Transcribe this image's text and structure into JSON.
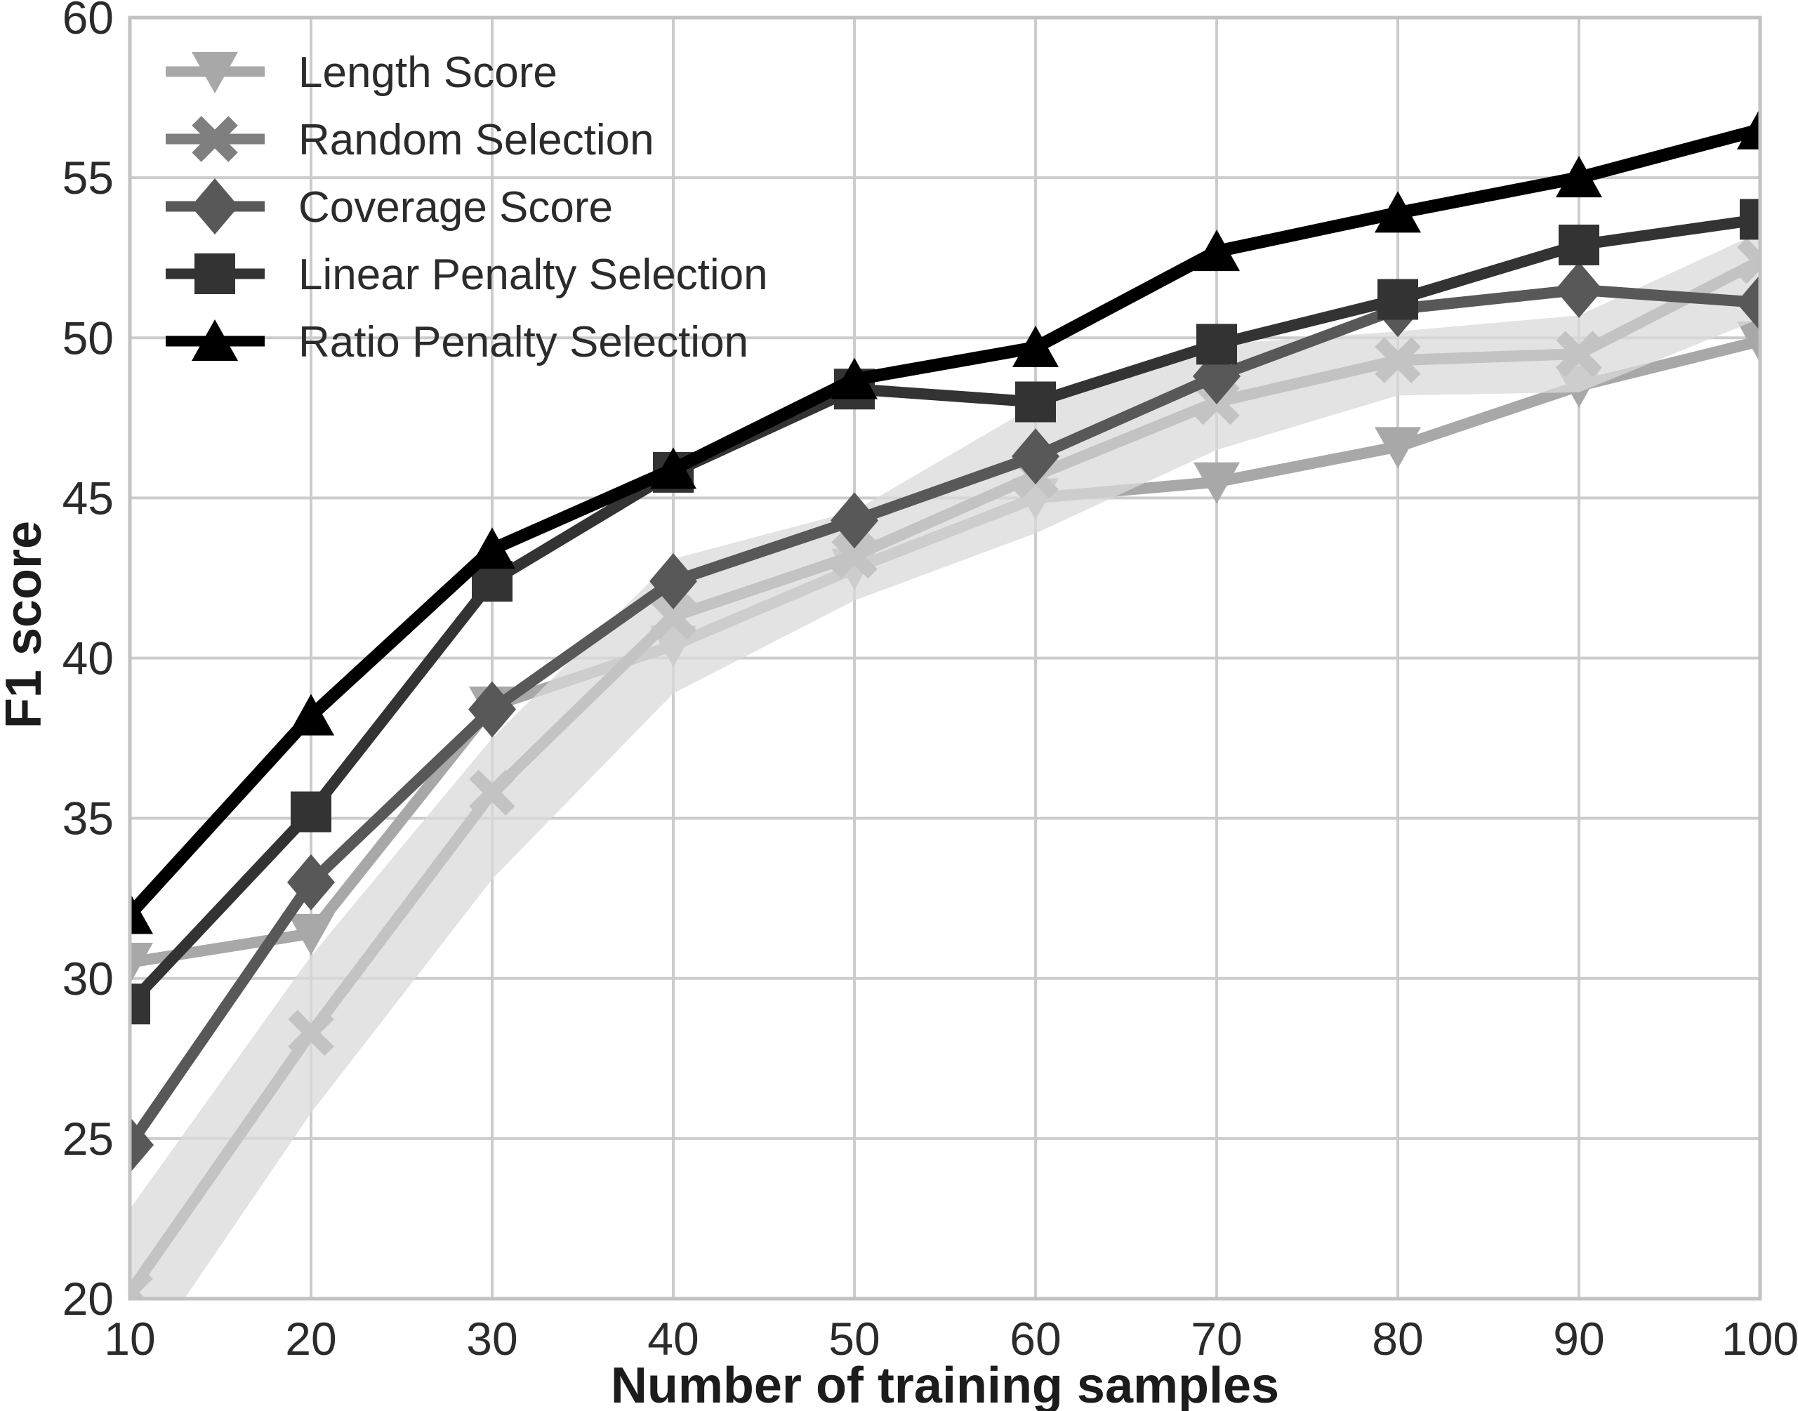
{
  "figure": {
    "background": "#ffffff",
    "grid_color": "#cccccc",
    "spine_color": "#c2c2c2",
    "text_color": "#2b2b2b",
    "band_color": "#d9d9d9"
  },
  "chart_data": {
    "type": "line",
    "title": "",
    "xlabel": "Number of training samples",
    "ylabel": "F1 score",
    "xlim": [
      10,
      100
    ],
    "ylim": [
      20,
      60
    ],
    "xticks": [
      10,
      20,
      30,
      40,
      50,
      60,
      70,
      80,
      90,
      100
    ],
    "yticks": [
      20,
      25,
      30,
      35,
      40,
      45,
      50,
      55,
      60
    ],
    "grid": true,
    "legend_position": "upper left",
    "x": [
      10,
      20,
      30,
      40,
      50,
      60,
      70,
      80,
      90,
      100
    ],
    "series": [
      {
        "name": "Length Score",
        "marker": "triangle-down",
        "color": "#a8a8a8",
        "values": [
          30.5,
          31.4,
          38.5,
          40.4,
          42.8,
          45.0,
          45.5,
          46.6,
          48.5,
          49.9
        ]
      },
      {
        "name": "Random Selection",
        "marker": "x",
        "color": "#7f7f7f",
        "values": [
          20.2,
          28.3,
          35.8,
          41.3,
          43.2,
          45.7,
          48.0,
          49.3,
          49.5,
          52.4
        ]
      },
      {
        "name": "Coverage Score",
        "marker": "diamond",
        "color": "#585858",
        "values": [
          24.8,
          33.0,
          38.4,
          42.4,
          44.3,
          46.3,
          48.8,
          50.9,
          51.5,
          51.1
        ]
      },
      {
        "name": "Linear Penalty Selection",
        "marker": "square",
        "color": "#333333",
        "values": [
          29.2,
          35.2,
          42.4,
          45.8,
          48.4,
          48.0,
          49.8,
          51.2,
          52.9,
          53.7
        ]
      },
      {
        "name": "Ratio Penalty Selection",
        "marker": "triangle-up",
        "color": "#000000",
        "values": [
          32.0,
          38.2,
          43.4,
          45.9,
          48.7,
          49.7,
          52.7,
          53.9,
          55.0,
          56.5
        ]
      }
    ],
    "band": {
      "around": "Random Selection",
      "lower": [
        17.5,
        25.8,
        33.1,
        38.9,
        41.8,
        43.9,
        46.5,
        48.2,
        48.3,
        50.6
      ],
      "upper": [
        22.8,
        30.7,
        37.5,
        43.1,
        44.6,
        47.9,
        49.8,
        50.2,
        50.7,
        53.3
      ]
    }
  }
}
